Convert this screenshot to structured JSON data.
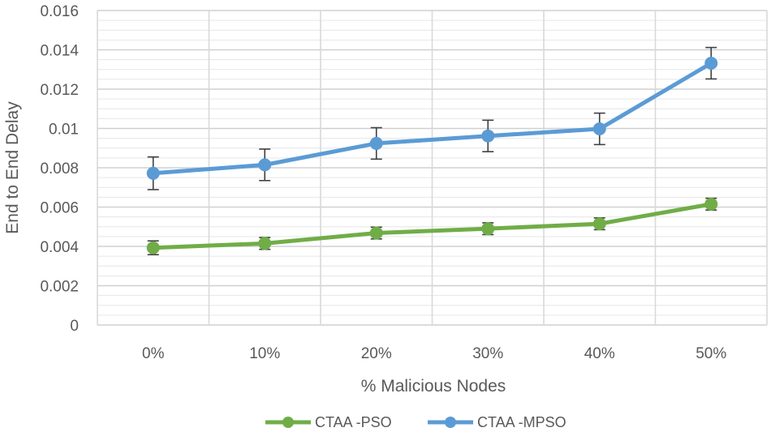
{
  "chart_data": {
    "type": "line",
    "title": "",
    "xlabel": "% Malicious Nodes",
    "ylabel": "End to End Delay",
    "categories": [
      "0%",
      "10%",
      "20%",
      "30%",
      "40%",
      "50%"
    ],
    "ylim": [
      0,
      0.016
    ],
    "yticks": [
      0,
      0.002,
      0.004,
      0.006,
      0.008,
      0.01,
      0.012,
      0.014,
      0.016
    ],
    "ytick_labels": [
      "0",
      "0.002",
      "0.004",
      "0.006",
      "0.008",
      "0.01",
      "0.012",
      "0.014",
      "0.016"
    ],
    "minor_grid_step": 0.0005,
    "legend_position": "bottom",
    "series": [
      {
        "name": "CTAA -PSO",
        "color": "#70ad47",
        "values": [
          0.00393,
          0.00415,
          0.00468,
          0.0049,
          0.00515,
          0.00615
        ],
        "errors": [
          0.00035,
          0.0003,
          0.0003,
          0.0003,
          0.0003,
          0.0003
        ]
      },
      {
        "name": "CTAA -MPSO",
        "color": "#5b9bd5",
        "values": [
          0.00772,
          0.00815,
          0.00924,
          0.00962,
          0.00998,
          0.01332
        ],
        "errors": [
          0.00083,
          0.0008,
          0.0008,
          0.0008,
          0.0008,
          0.0008
        ]
      }
    ]
  }
}
